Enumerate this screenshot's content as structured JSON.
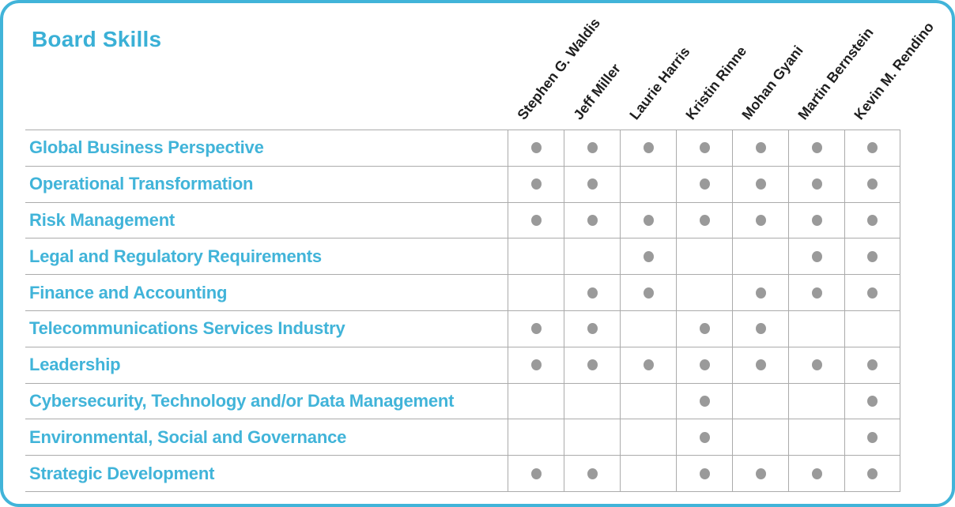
{
  "title": "Board Skills",
  "members": [
    "Stephen G. Waldis",
    "Jeff Miller",
    "Laurie Harris",
    "Kristin Rinne",
    "Mohan Gyani",
    "Martin Bernstein",
    "Kevin M. Rendino"
  ],
  "chart_data": {
    "type": "table",
    "title": "Board Skills",
    "columns": [
      "Stephen G. Waldis",
      "Jeff Miller",
      "Laurie Harris",
      "Kristin Rinne",
      "Mohan Gyani",
      "Martin Bernstein",
      "Kevin M. Rendino"
    ],
    "rows": [
      {
        "label": "Global Business Perspective",
        "has": [
          1,
          1,
          1,
          1,
          1,
          1,
          1
        ]
      },
      {
        "label": "Operational Transformation",
        "has": [
          1,
          1,
          0,
          1,
          1,
          1,
          1
        ]
      },
      {
        "label": "Risk Management",
        "has": [
          1,
          1,
          1,
          1,
          1,
          1,
          1
        ]
      },
      {
        "label": "Legal and Regulatory Requirements",
        "has": [
          0,
          0,
          1,
          0,
          0,
          1,
          1
        ]
      },
      {
        "label": "Finance and Accounting",
        "has": [
          0,
          1,
          1,
          0,
          1,
          1,
          1
        ]
      },
      {
        "label": "Telecommunications Services Industry",
        "has": [
          1,
          1,
          0,
          1,
          1,
          0,
          0
        ]
      },
      {
        "label": "Leadership",
        "has": [
          1,
          1,
          1,
          1,
          1,
          1,
          1
        ]
      },
      {
        "label": "Cybersecurity, Technology and/or Data Management",
        "has": [
          0,
          0,
          0,
          1,
          0,
          0,
          1
        ]
      },
      {
        "label": "Environmental, Social and Governance",
        "has": [
          0,
          0,
          0,
          1,
          0,
          0,
          1
        ]
      },
      {
        "label": "Strategic Development",
        "has": [
          1,
          1,
          0,
          1,
          1,
          1,
          1
        ]
      }
    ],
    "marker": "filled-gray-dot"
  },
  "colors": {
    "accent": "#41b4d9",
    "title_text": "#3ab0d6",
    "dot": "#9a9a9a",
    "grid_line": "#ababab",
    "name_text": "#1f1f1f",
    "background": "#ffffff"
  }
}
